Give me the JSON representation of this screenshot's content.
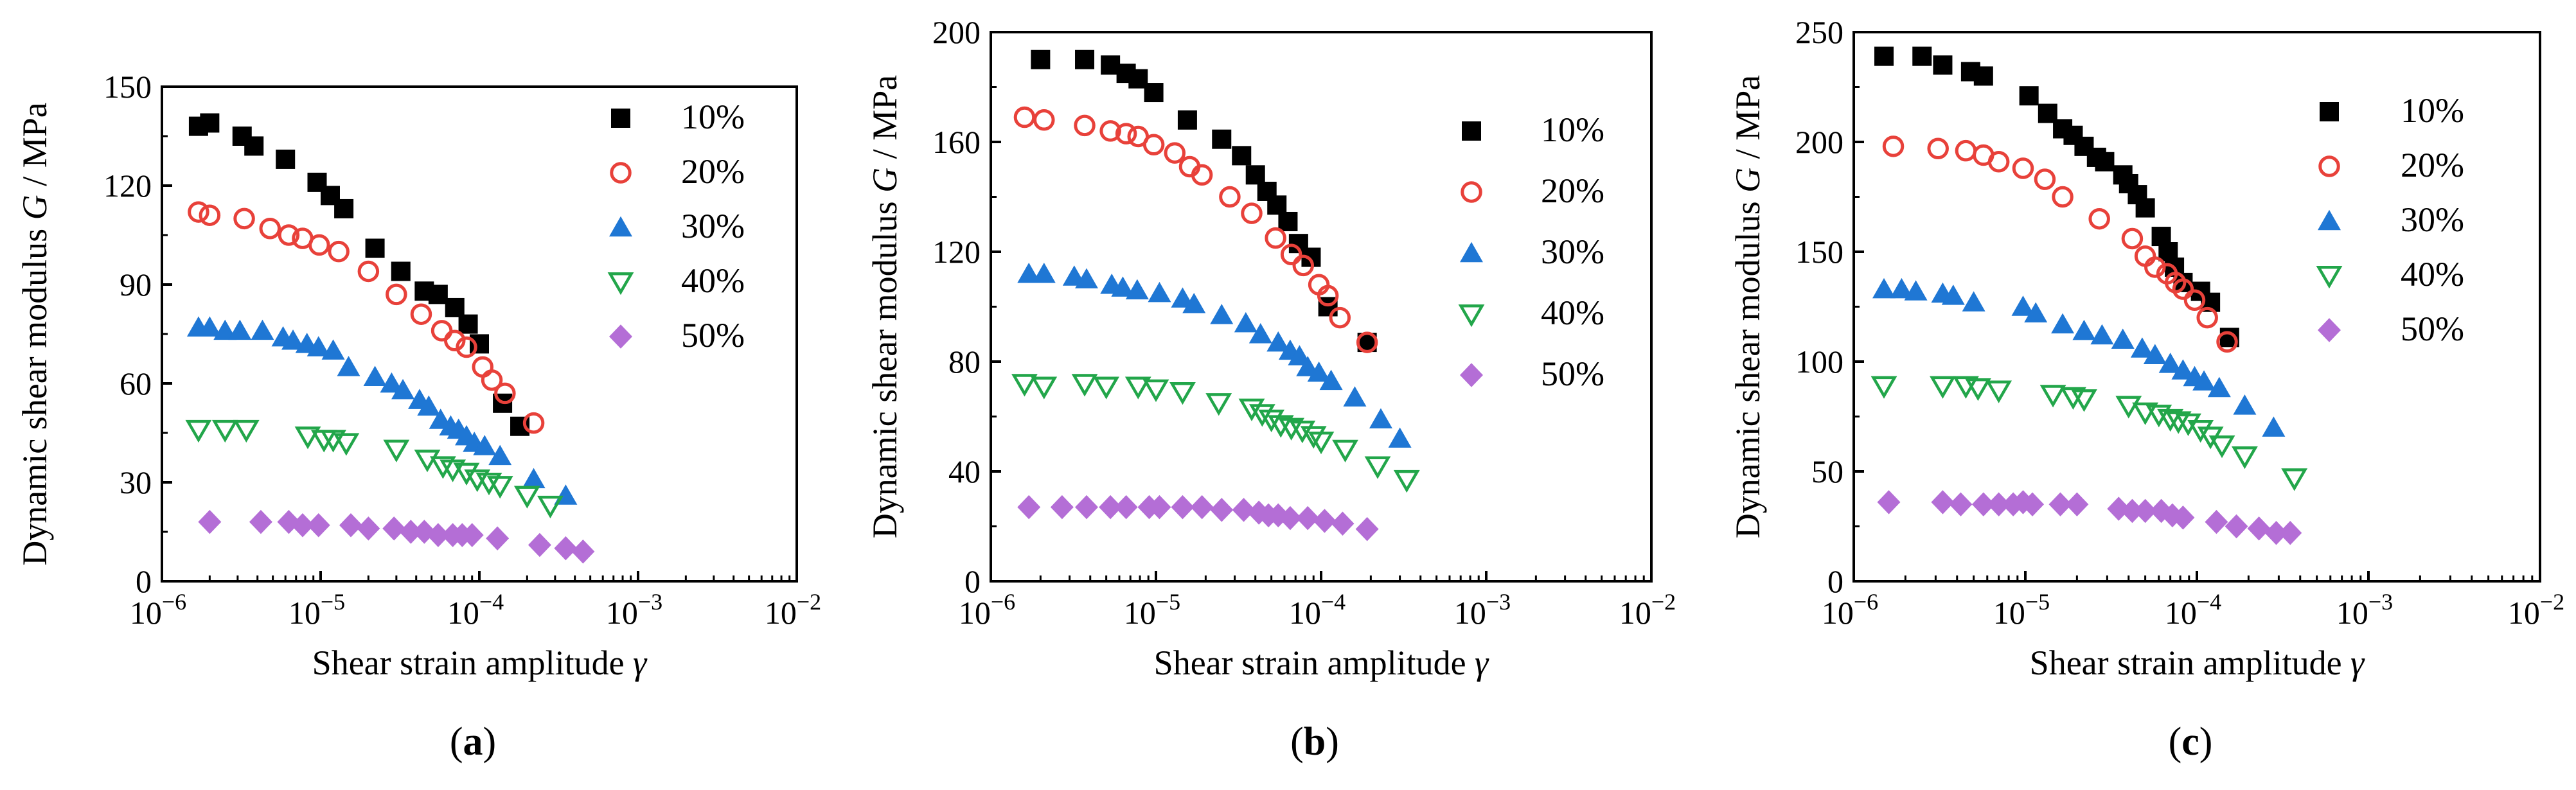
{
  "chart_data": [
    {
      "type": "scatter",
      "panel_label": "a",
      "xlabel": "Shear strain amplitude",
      "xlabel_symbol": "γ",
      "ylabel": "Dynamic shear modulus",
      "ylabel_symbol": "G",
      "ylabel_unit": " / MPa",
      "xscale": "log",
      "xlim": [
        1e-06,
        0.01
      ],
      "ylim": [
        0,
        150
      ],
      "yticks": [
        0,
        30,
        60,
        90,
        120,
        150
      ],
      "xticks": [
        1e-06,
        1e-05,
        0.0001,
        0.001,
        0.01
      ],
      "xtick_labels": [
        {
          "base": "10",
          "exp": "−6"
        },
        {
          "base": "10",
          "exp": "−5"
        },
        {
          "base": "10",
          "exp": "−4"
        },
        {
          "base": "10",
          "exp": "−3"
        },
        {
          "base": "10",
          "exp": "−2"
        }
      ],
      "grid": false,
      "legend_position": "top-right",
      "series": [
        {
          "name": "10%",
          "marker": "square",
          "color": "#000000",
          "x": [
            1.7e-06,
            2e-06,
            3.2e-06,
            3.8e-06,
            6e-06,
            9.5e-06,
            1.15e-05,
            1.4e-05,
            2.2e-05,
            3.2e-05,
            4.5e-05,
            5.5e-05,
            7e-05,
            8.5e-05,
            0.0001,
            0.00014,
            0.00018
          ],
          "y": [
            138,
            139,
            135,
            132,
            128,
            121,
            117,
            113,
            101,
            94,
            88,
            87,
            83,
            78,
            72,
            54,
            47
          ]
        },
        {
          "name": "20%",
          "marker": "circle-open",
          "color": "#e8413a",
          "x": [
            1.7e-06,
            2e-06,
            3.3e-06,
            4.8e-06,
            6.3e-06,
            7.7e-06,
            9.8e-06,
            1.3e-05,
            2e-05,
            3e-05,
            4.3e-05,
            5.8e-05,
            7e-05,
            8.3e-05,
            0.000105,
            0.00012,
            0.000145,
            0.00022
          ],
          "y": [
            112,
            111,
            110,
            107,
            105,
            104,
            102,
            100,
            94,
            87,
            81,
            76,
            73,
            71,
            65,
            61,
            57,
            48
          ]
        },
        {
          "name": "30%",
          "marker": "triangle-up",
          "color": "#1f77d4",
          "x": [
            1.7e-06,
            2e-06,
            2.5e-06,
            3.1e-06,
            4.3e-06,
            5.8e-06,
            6.7e-06,
            8.2e-06,
            9.7e-06,
            1.2e-05,
            1.5e-05,
            2.2e-05,
            2.8e-05,
            3.3e-05,
            4.2e-05,
            4.8e-05,
            5.7e-05,
            6.6e-05,
            7.4e-05,
            8.3e-05,
            9.3e-05,
            0.000108,
            0.000135,
            0.00022,
            0.00035
          ],
          "y": [
            77,
            77,
            76,
            76,
            76,
            74,
            73,
            72,
            71,
            70,
            65,
            62,
            60,
            58,
            55,
            53,
            49,
            47,
            46,
            44,
            42,
            41,
            38,
            31,
            26
          ]
        },
        {
          "name": "40%",
          "marker": "triangle-down-open",
          "color": "#22a64a",
          "x": [
            1.7e-06,
            2.5e-06,
            3.4e-06,
            8.3e-06,
            1.05e-05,
            1.2e-05,
            1.45e-05,
            3e-05,
            4.7e-05,
            5.9e-05,
            6.8e-05,
            8.3e-05,
            9.7e-05,
            0.000115,
            0.000135,
            0.0002,
            0.00028
          ],
          "y": [
            46,
            46,
            46,
            44,
            43,
            43,
            42,
            40,
            37,
            35,
            34,
            33,
            31,
            30,
            29,
            26,
            23
          ]
        },
        {
          "name": "50%",
          "marker": "diamond",
          "color": "#b46ed6",
          "x": [
            2e-06,
            4.2e-06,
            6.3e-06,
            7.7e-06,
            9.7e-06,
            1.55e-05,
            2e-05,
            2.9e-05,
            3.7e-05,
            4.5e-05,
            5.5e-05,
            6.8e-05,
            7.8e-05,
            9e-05,
            0.00013,
            0.00024,
            0.00035,
            0.00045
          ],
          "y": [
            18,
            18,
            18,
            17,
            17,
            17,
            16,
            16,
            15,
            15,
            14,
            14,
            14,
            14,
            13,
            11,
            10,
            9
          ]
        }
      ]
    },
    {
      "type": "scatter",
      "panel_label": "b",
      "xlabel": "Shear strain amplitude",
      "xlabel_symbol": "γ",
      "ylabel": "Dynamic shear modulus",
      "ylabel_symbol": "G",
      "ylabel_unit": " / MPa",
      "xscale": "log",
      "xlim": [
        1e-06,
        0.01
      ],
      "ylim": [
        0,
        200
      ],
      "yticks": [
        0,
        40,
        80,
        120,
        160,
        200
      ],
      "xticks": [
        1e-06,
        1e-05,
        0.0001,
        0.001,
        0.01
      ],
      "xtick_labels": [
        {
          "base": "10",
          "exp": "−6"
        },
        {
          "base": "10",
          "exp": "−5"
        },
        {
          "base": "10",
          "exp": "−4"
        },
        {
          "base": "10",
          "exp": "−3"
        },
        {
          "base": "10",
          "exp": "−2"
        }
      ],
      "grid": false,
      "legend_position": "top-right",
      "series": [
        {
          "name": "10%",
          "marker": "square",
          "color": "#000000",
          "x": [
            2e-06,
            3.7e-06,
            5.3e-06,
            6.6e-06,
            7.8e-06,
            9.7e-06,
            1.55e-05,
            2.5e-05,
            3.3e-05,
            4e-05,
            4.7e-05,
            5.4e-05,
            6.3e-05,
            7.3e-05,
            8.7e-05,
            0.00011,
            0.00019
          ],
          "y": [
            190,
            190,
            188,
            185,
            183,
            178,
            168,
            161,
            155,
            148,
            142,
            137,
            131,
            123,
            118,
            100,
            87
          ]
        },
        {
          "name": "20%",
          "marker": "circle-open",
          "color": "#e8413a",
          "x": [
            1.6e-06,
            2.1e-06,
            3.7e-06,
            5.3e-06,
            6.6e-06,
            7.8e-06,
            9.7e-06,
            1.3e-05,
            1.6e-05,
            1.9e-05,
            2.8e-05,
            3.8e-05,
            5.3e-05,
            6.6e-05,
            7.8e-05,
            9.7e-05,
            0.00011,
            0.00013,
            0.00019
          ],
          "y": [
            169,
            168,
            166,
            164,
            163,
            162,
            159,
            156,
            151,
            148,
            140,
            134,
            125,
            119,
            115,
            108,
            104,
            96,
            87
          ]
        },
        {
          "name": "30%",
          "marker": "triangle-up",
          "color": "#1f77d4",
          "x": [
            1.7e-06,
            2.1e-06,
            3.2e-06,
            3.8e-06,
            5.4e-06,
            6.3e-06,
            7.7e-06,
            1.05e-05,
            1.45e-05,
            1.7e-05,
            2.5e-05,
            3.5e-05,
            4.3e-05,
            5.5e-05,
            6.5e-05,
            7.4e-05,
            8.3e-05,
            9.7e-05,
            0.000115,
            0.00016,
            0.00023,
            0.0003
          ],
          "y": [
            112,
            112,
            111,
            110,
            108,
            107,
            106,
            105,
            103,
            101,
            97,
            94,
            90,
            87,
            84,
            82,
            78,
            76,
            73,
            67,
            59,
            52
          ]
        },
        {
          "name": "40%",
          "marker": "triangle-down-open",
          "color": "#22a64a",
          "x": [
            1.6e-06,
            2.1e-06,
            3.7e-06,
            5e-06,
            7.8e-06,
            1e-05,
            1.45e-05,
            2.4e-05,
            3.8e-05,
            4.4e-05,
            5e-05,
            5.7e-05,
            6.6e-05,
            7.7e-05,
            9e-05,
            0.0001,
            0.00014,
            0.00022,
            0.00033
          ],
          "y": [
            72,
            71,
            72,
            71,
            71,
            70,
            69,
            65,
            63,
            61,
            59,
            57,
            56,
            55,
            53,
            51,
            48,
            42,
            37
          ]
        },
        {
          "name": "50%",
          "marker": "diamond",
          "color": "#b46ed6",
          "x": [
            1.7e-06,
            2.7e-06,
            3.8e-06,
            5.3e-06,
            6.6e-06,
            9.1e-06,
            1.05e-05,
            1.45e-05,
            1.9e-05,
            2.5e-05,
            3.4e-05,
            4.2e-05,
            4.8e-05,
            5.5e-05,
            6.5e-05,
            8.3e-05,
            0.000105,
            0.000135,
            0.00019
          ],
          "y": [
            27,
            27,
            27,
            27,
            27,
            27,
            27,
            27,
            27,
            26,
            26,
            25,
            24,
            24,
            23,
            23,
            22,
            21,
            19
          ]
        }
      ]
    },
    {
      "type": "scatter",
      "panel_label": "c",
      "xlabel": "Shear strain amplitude",
      "xlabel_symbol": "γ",
      "ylabel": "Dynamic shear modulus",
      "ylabel_symbol": "G",
      "ylabel_unit": " / MPa",
      "xscale": "log",
      "xlim": [
        1e-06,
        0.01
      ],
      "ylim": [
        0,
        250
      ],
      "yticks": [
        0,
        50,
        100,
        150,
        200,
        250
      ],
      "xticks": [
        1e-06,
        1e-05,
        0.0001,
        0.001,
        0.01
      ],
      "xtick_labels": [
        {
          "base": "10",
          "exp": "−6"
        },
        {
          "base": "10",
          "exp": "−5"
        },
        {
          "base": "10",
          "exp": "−4"
        },
        {
          "base": "10",
          "exp": "−3"
        },
        {
          "base": "10",
          "exp": "−2"
        }
      ],
      "grid": false,
      "legend_position": "top-right",
      "series": [
        {
          "name": "10%",
          "marker": "square",
          "color": "#000000",
          "x": [
            1.5e-06,
            2.5e-06,
            3.3e-06,
            4.8e-06,
            5.7e-06,
            1.05e-05,
            1.35e-05,
            1.65e-05,
            1.9e-05,
            2.2e-05,
            2.6e-05,
            2.9e-05,
            3.7e-05,
            4e-05,
            4.5e-05,
            5e-05,
            6.2e-05,
            6.8e-05,
            7.4e-05,
            8.3e-05,
            0.000105,
            0.00012,
            0.000155
          ],
          "y": [
            239,
            239,
            235,
            232,
            230,
            221,
            213,
            206,
            203,
            198,
            193,
            191,
            185,
            181,
            176,
            170,
            157,
            150,
            143,
            136,
            132,
            127,
            111
          ]
        },
        {
          "name": "20%",
          "marker": "circle-open",
          "color": "#e8413a",
          "x": [
            1.7e-06,
            3.1e-06,
            4.5e-06,
            5.7e-06,
            7e-06,
            9.7e-06,
            1.3e-05,
            1.65e-05,
            2.7e-05,
            4.2e-05,
            5e-05,
            5.7e-05,
            6.7e-05,
            7.5e-05,
            8.3e-05,
            9.7e-05,
            0.000115,
            0.00015
          ],
          "y": [
            198,
            197,
            196,
            194,
            191,
            188,
            183,
            175,
            165,
            156,
            148,
            143,
            140,
            136,
            133,
            128,
            120,
            109
          ]
        },
        {
          "name": "30%",
          "marker": "triangle-up",
          "color": "#1f77d4",
          "x": [
            1.5e-06,
            1.9e-06,
            2.3e-06,
            3.3e-06,
            3.8e-06,
            5e-06,
            9.7e-06,
            1.15e-05,
            1.65e-05,
            2.2e-05,
            2.8e-05,
            3.7e-05,
            4.8e-05,
            5.7e-05,
            7e-05,
            8.3e-05,
            9.7e-05,
            0.00011,
            0.000135,
            0.00019,
            0.00028
          ],
          "y": [
            133,
            133,
            132,
            131,
            130,
            127,
            125,
            122,
            117,
            114,
            112,
            110,
            106,
            103,
            99,
            96,
            93,
            91,
            88,
            80,
            70
          ]
        },
        {
          "name": "40%",
          "marker": "triangle-down-open",
          "color": "#22a64a",
          "x": [
            1.5e-06,
            3.3e-06,
            4.5e-06,
            5.3e-06,
            7e-06,
            1.45e-05,
            1.9e-05,
            2.2e-05,
            4e-05,
            5e-05,
            6e-05,
            7e-05,
            7.8e-05,
            8.9e-05,
            0.000105,
            0.00012,
            0.00014,
            0.00019,
            0.00037
          ],
          "y": [
            89,
            89,
            89,
            88,
            87,
            85,
            84,
            83,
            80,
            77,
            76,
            74,
            73,
            72,
            69,
            66,
            62,
            57,
            47
          ]
        },
        {
          "name": "50%",
          "marker": "diamond",
          "color": "#b46ed6",
          "x": [
            1.6e-06,
            3.3e-06,
            4.2e-06,
            5.7e-06,
            7e-06,
            8.5e-06,
            9.7e-06,
            1.1e-05,
            1.6e-05,
            2e-05,
            3.5e-05,
            4.2e-05,
            5e-05,
            6.2e-05,
            7.2e-05,
            8.3e-05,
            0.00013,
            0.00017,
            0.00023,
            0.00029,
            0.00035
          ],
          "y": [
            36,
            36,
            35,
            35,
            35,
            35,
            36,
            35,
            35,
            35,
            33,
            32,
            32,
            32,
            30,
            29,
            27,
            25,
            24,
            22,
            22
          ]
        }
      ]
    }
  ]
}
